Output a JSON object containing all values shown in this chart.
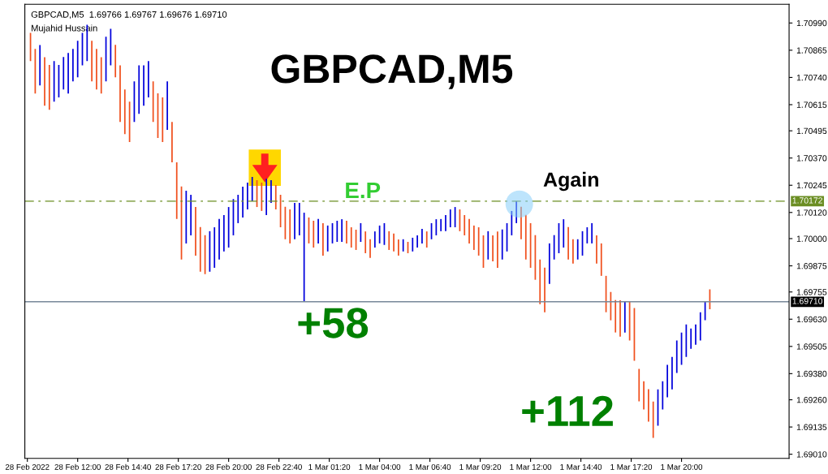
{
  "chart_data": {
    "type": "bar",
    "title": "GBPCAD,M5",
    "annotations": [
      "GBPCAD,M5  1.69766 1.69767 1.69676 1.69710",
      "Mujahid Hussain",
      "E.P",
      "Again",
      "+58",
      "+112"
    ],
    "x": [
      "2022-02-28T09:30",
      "2022-02-28T09:45",
      "2022-02-28T10:00",
      "2022-02-28T10:15",
      "2022-02-28T10:30",
      "2022-02-28T10:45",
      "2022-02-28T11:00",
      "2022-02-28T11:15",
      "2022-02-28T11:30",
      "2022-02-28T11:45",
      "2022-02-28T12:00",
      "2022-02-28T12:15",
      "2022-02-28T12:30",
      "2022-02-28T12:45",
      "2022-02-28T13:00",
      "2022-02-28T13:15",
      "2022-02-28T13:30",
      "2022-02-28T13:45",
      "2022-02-28T14:00",
      "2022-02-28T14:15",
      "2022-02-28T14:30",
      "2022-02-28T14:45",
      "2022-02-28T15:00",
      "2022-02-28T15:15",
      "2022-02-28T15:30",
      "2022-02-28T15:45",
      "2022-02-28T16:00",
      "2022-02-28T16:15",
      "2022-02-28T16:30",
      "2022-02-28T16:45",
      "2022-02-28T17:00",
      "2022-02-28T17:15",
      "2022-02-28T17:30",
      "2022-02-28T17:45",
      "2022-02-28T18:00",
      "2022-02-28T18:15",
      "2022-02-28T18:30",
      "2022-02-28T18:45",
      "2022-02-28T19:00",
      "2022-02-28T19:15",
      "2022-02-28T19:30",
      "2022-02-28T19:45",
      "2022-02-28T20:00",
      "2022-02-28T20:15",
      "2022-02-28T20:30",
      "2022-02-28T20:45",
      "2022-02-28T21:00",
      "2022-02-28T21:15",
      "2022-02-28T21:30",
      "2022-02-28T21:45",
      "2022-02-28T22:00",
      "2022-02-28T22:15",
      "2022-02-28T22:30",
      "2022-02-28T22:45",
      "2022-02-28T23:00",
      "2022-02-28T23:15",
      "2022-02-28T23:30",
      "2022-02-28T23:45",
      "2022-03-01T00:00",
      "2022-03-01T00:15",
      "2022-03-01T00:30",
      "2022-03-01T00:45",
      "2022-03-01T01:00",
      "2022-03-01T01:15",
      "2022-03-01T01:30",
      "2022-03-01T01:45",
      "2022-03-01T02:00",
      "2022-03-01T02:15",
      "2022-03-01T02:30",
      "2022-03-01T02:45",
      "2022-03-01T03:00",
      "2022-03-01T03:15",
      "2022-03-01T03:30",
      "2022-03-01T03:45",
      "2022-03-01T04:00",
      "2022-03-01T04:15",
      "2022-03-01T04:30",
      "2022-03-01T04:45",
      "2022-03-01T05:00",
      "2022-03-01T05:15",
      "2022-03-01T05:30",
      "2022-03-01T05:45",
      "2022-03-01T06:00",
      "2022-03-01T06:15",
      "2022-03-01T06:30",
      "2022-03-01T06:45",
      "2022-03-01T07:00",
      "2022-03-01T07:15",
      "2022-03-01T07:30",
      "2022-03-01T07:45",
      "2022-03-01T08:00",
      "2022-03-01T08:15",
      "2022-03-01T08:30",
      "2022-03-01T08:45",
      "2022-03-01T09:00",
      "2022-03-01T09:15",
      "2022-03-01T09:30",
      "2022-03-01T09:45",
      "2022-03-01T10:00",
      "2022-03-01T10:15",
      "2022-03-01T10:30",
      "2022-03-01T10:45",
      "2022-03-01T11:00",
      "2022-03-01T11:15",
      "2022-03-01T11:30",
      "2022-03-01T11:45",
      "2022-03-01T12:00",
      "2022-03-01T12:15",
      "2022-03-01T12:30",
      "2022-03-01T12:45",
      "2022-03-01T13:00",
      "2022-03-01T13:15",
      "2022-03-01T13:30",
      "2022-03-01T13:45",
      "2022-03-01T14:00",
      "2022-03-01T14:15",
      "2022-03-01T14:30",
      "2022-03-01T14:45",
      "2022-03-01T15:00",
      "2022-03-01T15:15",
      "2022-03-01T15:30",
      "2022-03-01T15:45",
      "2022-03-01T16:00",
      "2022-03-01T16:15",
      "2022-03-01T16:30",
      "2022-03-01T16:45",
      "2022-03-01T17:00",
      "2022-03-01T17:15",
      "2022-03-01T17:30",
      "2022-03-01T17:45",
      "2022-03-01T18:00",
      "2022-03-01T18:15",
      "2022-03-01T18:30",
      "2022-03-01T18:45",
      "2022-03-01T19:00",
      "2022-03-01T19:15",
      "2022-03-01T19:30",
      "2022-03-01T19:45",
      "2022-03-01T20:00",
      "2022-03-01T20:15",
      "2022-03-01T20:30",
      "2022-03-01T20:45",
      "2022-03-01T21:00",
      "2022-03-01T21:15",
      "2022-03-01T21:30"
    ],
    "base": [
      1.70815,
      1.70666,
      1.70703,
      1.7061,
      1.70592,
      1.70629,
      1.70648,
      1.70685,
      1.70666,
      1.70722,
      1.70741,
      1.70796,
      1.70815,
      1.70722,
      1.70685,
      1.70666,
      1.70722,
      1.70796,
      1.70741,
      1.70536,
      1.7048,
      1.70443,
      1.70536,
      1.70573,
      1.7061,
      1.70648,
      1.70536,
      1.70462,
      1.70443,
      1.70499,
      1.7035,
      1.7009,
      1.69904,
      1.69978,
      1.70015,
      1.69922,
      1.69848,
      1.69837,
      1.69848,
      1.69866,
      1.69904,
      1.69941,
      1.69959,
      1.70015,
      1.70071,
      1.70097,
      1.70134,
      1.70171,
      1.70145,
      1.70127,
      1.70108,
      1.70164,
      1.70134,
      1.70052,
      1.69997,
      1.69978,
      1.69997,
      1.70015,
      1.6971,
      1.69978,
      1.69959,
      1.69978,
      1.69922,
      1.69941,
      1.69978,
      1.69985,
      1.69985,
      1.69978,
      1.69959,
      1.69948,
      1.69985,
      1.69933,
      1.69911,
      1.69959,
      1.69978,
      1.69971,
      1.69948,
      1.69941,
      1.69922,
      1.69941,
      1.69933,
      1.69941,
      1.69959,
      1.69978,
      1.69959,
      1.69997,
      1.70015,
      1.70034,
      1.70034,
      1.70052,
      1.70052,
      1.70034,
      1.70015,
      1.69978,
      1.69948,
      1.69922,
      1.69866,
      1.69904,
      1.69896,
      1.69866,
      1.69904,
      1.69941,
      1.70015,
      1.70071,
      1.69997,
      1.69904,
      1.69866,
      1.69811,
      1.69699,
      1.69662,
      1.69792,
      1.69904,
      1.69933,
      1.69959,
      1.69904,
      1.69885,
      1.69904,
      1.69922,
      1.69978,
      1.69978,
      1.69885,
      1.69829,
      1.69662,
      1.69625,
      1.69569,
      1.6955,
      1.69569,
      1.69532,
      1.69439,
      1.69253,
      1.69215,
      1.6916,
      1.69085,
      1.69141,
      1.69215,
      1.69271,
      1.69308,
      1.69383,
      1.6942,
      1.69457,
      1.69494,
      1.69513,
      1.69532,
      1.69625,
      1.69676
    ],
    "values": [
      0.0013,
      0.00205,
      0.00186,
      0.00223,
      0.00205,
      0.00186,
      0.00149,
      0.00149,
      0.00186,
      0.00149,
      0.00167,
      0.00149,
      0.00167,
      0.00186,
      0.00186,
      0.00167,
      0.00205,
      0.00167,
      0.00149,
      0.0026,
      0.00205,
      0.00186,
      0.00186,
      0.00223,
      0.00186,
      0.00167,
      0.00186,
      0.00205,
      0.00205,
      0.00223,
      0.00186,
      0.0026,
      0.00335,
      0.00242,
      0.00186,
      0.00223,
      0.00205,
      0.00179,
      0.00186,
      0.00186,
      0.00186,
      0.00167,
      0.00186,
      0.00167,
      0.0013,
      0.00141,
      0.00123,
      0.00112,
      0.00123,
      0.0013,
      0.00167,
      0.00104,
      0.00112,
      0.00149,
      0.00149,
      0.00156,
      0.00167,
      0.00149,
      0.00409,
      0.00119,
      0.00123,
      0.00112,
      0.00149,
      0.00119,
      0.00093,
      0.00097,
      0.00104,
      0.00104,
      0.00093,
      0.00093,
      0.00086,
      0.001,
      0.00086,
      0.00074,
      0.00082,
      0.001,
      0.00086,
      0.00082,
      0.00074,
      0.00056,
      0.00052,
      0.00063,
      0.00056,
      0.00067,
      0.00074,
      0.00074,
      0.00074,
      0.00056,
      0.00074,
      0.00082,
      0.00093,
      0.001,
      0.00093,
      0.00112,
      0.00112,
      0.0013,
      0.00149,
      0.0013,
      0.00119,
      0.00167,
      0.00138,
      0.0013,
      0.00112,
      0.001,
      0.00149,
      0.00205,
      0.00205,
      0.00205,
      0.00205,
      0.00205,
      0.00186,
      0.00112,
      0.00138,
      0.0013,
      0.00149,
      0.00112,
      0.00093,
      0.00112,
      0.00074,
      0.00093,
      0.0013,
      0.00149,
      0.00167,
      0.0013,
      0.00149,
      0.00167,
      0.00141,
      0.00179,
      0.00242,
      0.00149,
      0.0013,
      0.00149,
      0.00167,
      0.00167,
      0.0013,
      0.00149,
      0.00149,
      0.00149,
      0.00149,
      0.00149,
      0.00093,
      0.00093,
      0.0013,
      0.00086,
      0.00091
    ],
    "colors": [
      "#f0501e",
      "#f0501e",
      "#0000dc",
      "#f0501e",
      "#f0501e",
      "#0000dc",
      "#0000dc",
      "#0000dc",
      "#0000dc",
      "#0000dc",
      "#0000dc",
      "#0000dc",
      "#0000dc",
      "#f0501e",
      "#f0501e",
      "#f0501e",
      "#0000dc",
      "#0000dc",
      "#f0501e",
      "#f0501e",
      "#f0501e",
      "#f0501e",
      "#0000dc",
      "#0000dc",
      "#0000dc",
      "#0000dc",
      "#f0501e",
      "#f0501e",
      "#f0501e",
      "#0000dc",
      "#f0501e",
      "#f0501e",
      "#f0501e",
      "#0000dc",
      "#0000dc",
      "#f0501e",
      "#f0501e",
      "#f0501e",
      "#0000dc",
      "#0000dc",
      "#0000dc",
      "#0000dc",
      "#0000dc",
      "#0000dc",
      "#0000dc",
      "#0000dc",
      "#0000dc",
      "#0000dc",
      "#f0501e",
      "#f0501e",
      "#0000dc",
      "#0000dc",
      "#f0501e",
      "#f0501e",
      "#f0501e",
      "#f0501e",
      "#0000dc",
      "#0000dc",
      "#0000dc",
      "#f0501e",
      "#f0501e",
      "#0000dc",
      "#f0501e",
      "#0000dc",
      "#0000dc",
      "#0000dc",
      "#0000dc",
      "#f0501e",
      "#f0501e",
      "#f0501e",
      "#0000dc",
      "#f0501e",
      "#f0501e",
      "#0000dc",
      "#0000dc",
      "#0000dc",
      "#f0501e",
      "#f0501e",
      "#f0501e",
      "#0000dc",
      "#f0501e",
      "#0000dc",
      "#0000dc",
      "#0000dc",
      "#f0501e",
      "#0000dc",
      "#0000dc",
      "#0000dc",
      "#0000dc",
      "#0000dc",
      "#0000dc",
      "#f0501e",
      "#f0501e",
      "#f0501e",
      "#f0501e",
      "#f0501e",
      "#f0501e",
      "#0000dc",
      "#f0501e",
      "#f0501e",
      "#0000dc",
      "#0000dc",
      "#0000dc",
      "#0000dc",
      "#f0501e",
      "#f0501e",
      "#f0501e",
      "#f0501e",
      "#f0501e",
      "#f0501e",
      "#0000dc",
      "#0000dc",
      "#0000dc",
      "#0000dc",
      "#f0501e",
      "#f0501e",
      "#0000dc",
      "#0000dc",
      "#0000dc",
      "#0000dc",
      "#f0501e",
      "#f0501e",
      "#f0501e",
      "#f0501e",
      "#f0501e",
      "#f0501e",
      "#0000dc",
      "#f0501e",
      "#f0501e",
      "#f0501e",
      "#f0501e",
      "#f0501e",
      "#f0501e",
      "#0000dc",
      "#0000dc",
      "#0000dc",
      "#0000dc",
      "#0000dc",
      "#0000dc",
      "#0000dc",
      "#0000dc",
      "#0000dc",
      "#0000dc",
      "#0000dc",
      "#f0501e"
    ],
    "xlim": [
      "2022-02-28T09:12",
      "2022-03-02T01:42"
    ],
    "xticks": [
      {
        "value": "2022-02-28T09:20",
        "label": "28 Feb 2022"
      },
      {
        "value": "2022-02-28T12:00",
        "label": "28 Feb 12:00"
      },
      {
        "value": "2022-02-28T14:40",
        "label": "28 Feb 14:40"
      },
      {
        "value": "2022-02-28T17:20",
        "label": "28 Feb 17:20"
      },
      {
        "value": "2022-02-28T20:00",
        "label": "28 Feb 20:00"
      },
      {
        "value": "2022-02-28T22:40",
        "label": "28 Feb 22:40"
      },
      {
        "value": "2022-03-01T01:20",
        "label": "1 Mar 01:20"
      },
      {
        "value": "2022-03-01T04:00",
        "label": "1 Mar 04:00"
      },
      {
        "value": "2022-03-01T06:40",
        "label": "1 Mar 06:40"
      },
      {
        "value": "2022-03-01T09:20",
        "label": "1 Mar 09:20"
      },
      {
        "value": "2022-03-01T12:00",
        "label": "1 Mar 12:00"
      },
      {
        "value": "2022-03-01T14:40",
        "label": "1 Mar 14:40"
      },
      {
        "value": "2022-03-01T17:20",
        "label": "1 Mar 17:20"
      },
      {
        "value": "2022-03-01T20:00",
        "label": "1 Mar 20:00"
      }
    ],
    "ylim": [
      1.68991,
      1.71076
    ],
    "yticks": [
      {
        "value": 1.6901,
        "label": "1.69010"
      },
      {
        "value": 1.69135,
        "label": "1.69135"
      },
      {
        "value": 1.6926,
        "label": "1.69260"
      },
      {
        "value": 1.6938,
        "label": "1.69380"
      },
      {
        "value": 1.69505,
        "label": "1.69505"
      },
      {
        "value": 1.6963,
        "label": "1.69630"
      },
      {
        "value": 1.69755,
        "label": "1.69755"
      },
      {
        "value": 1.69875,
        "label": "1.69875"
      },
      {
        "value": 1.7,
        "label": "1.70000"
      },
      {
        "value": 1.7012,
        "label": "1.70120"
      },
      {
        "value": 1.70245,
        "label": "1.70245"
      },
      {
        "value": 1.7037,
        "label": "1.70370"
      },
      {
        "value": 1.70495,
        "label": "1.70495"
      },
      {
        "value": 1.70615,
        "label": "1.70615"
      },
      {
        "value": 1.7074,
        "label": "1.70740"
      },
      {
        "value": 1.70865,
        "label": "1.70865"
      },
      {
        "value": 1.7099,
        "label": "1.70990"
      }
    ],
    "ref_lines": [
      {
        "axis": "y",
        "value": 1.70172,
        "label": "1.70172",
        "color": "#6b8e23",
        "line_style": "dashdot"
      },
      {
        "axis": "y",
        "value": 1.6971,
        "label": "1.69710",
        "color": "#778899",
        "line_style": "solid"
      }
    ],
    "grid": false,
    "legend": false
  }
}
